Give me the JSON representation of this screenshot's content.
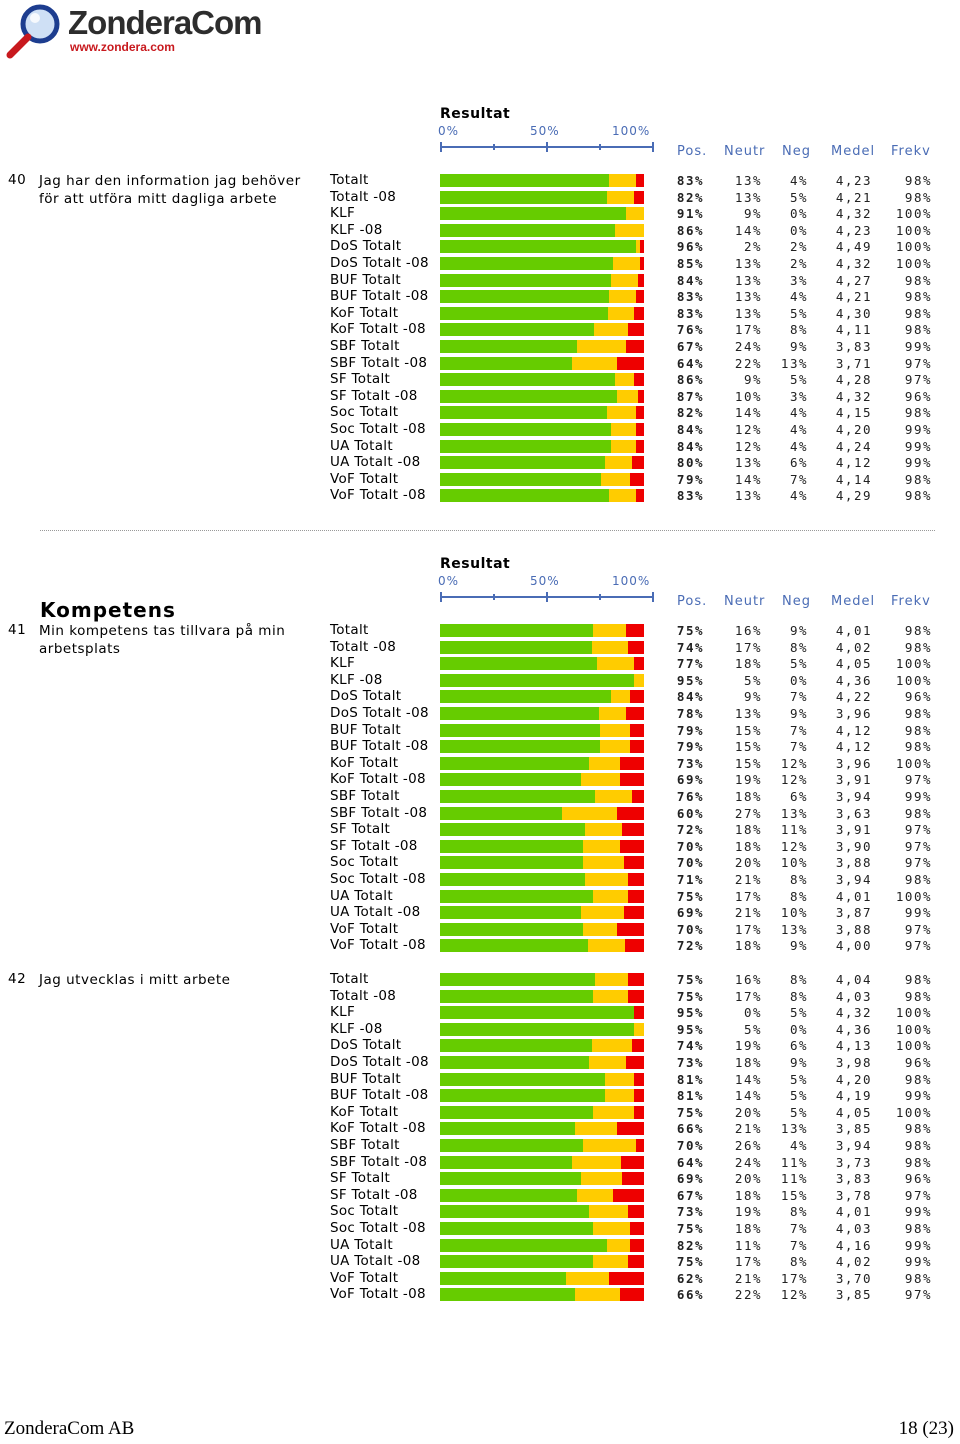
{
  "logo": {
    "brand": "ZonderaCom",
    "url": "www.zondera.com"
  },
  "colors": {
    "positive": "#66cc00",
    "neutral": "#ffcc00",
    "negative": "#ee0000",
    "header_blue": "#4a6cb5"
  },
  "header": {
    "result_label": "Resultat",
    "scale": [
      "0%",
      "50%",
      "100%"
    ],
    "columns": {
      "pos": "Pos.",
      "neutr": "Neutr",
      "neg": "Neg",
      "medel": "Medel",
      "frekv": "Frekv"
    }
  },
  "sections": [
    {
      "title": "",
      "questions": [
        {
          "num": "40",
          "text": "Jag har den information jag behöver för att utföra mitt dagliga arbete",
          "rows": [
            {
              "label": "Totalt",
              "pos": "83%",
              "neutr": "13%",
              "neg": "4%",
              "medel": "4,23",
              "frekv": "98%"
            },
            {
              "label": "Totalt -08",
              "pos": "82%",
              "neutr": "13%",
              "neg": "5%",
              "medel": "4,21",
              "frekv": "98%"
            },
            {
              "label": "KLF",
              "pos": "91%",
              "neutr": "9%",
              "neg": "0%",
              "medel": "4,32",
              "frekv": "100%"
            },
            {
              "label": "KLF -08",
              "pos": "86%",
              "neutr": "14%",
              "neg": "0%",
              "medel": "4,23",
              "frekv": "100%"
            },
            {
              "label": "DoS Totalt",
              "pos": "96%",
              "neutr": "2%",
              "neg": "2%",
              "medel": "4,49",
              "frekv": "100%"
            },
            {
              "label": "DoS Totalt -08",
              "pos": "85%",
              "neutr": "13%",
              "neg": "2%",
              "medel": "4,32",
              "frekv": "100%"
            },
            {
              "label": "BUF Totalt",
              "pos": "84%",
              "neutr": "13%",
              "neg": "3%",
              "medel": "4,27",
              "frekv": "98%"
            },
            {
              "label": "BUF Totalt -08",
              "pos": "83%",
              "neutr": "13%",
              "neg": "4%",
              "medel": "4,21",
              "frekv": "98%"
            },
            {
              "label": "KoF Totalt",
              "pos": "83%",
              "neutr": "13%",
              "neg": "5%",
              "medel": "4,30",
              "frekv": "98%"
            },
            {
              "label": "KoF Totalt -08",
              "pos": "76%",
              "neutr": "17%",
              "neg": "8%",
              "medel": "4,11",
              "frekv": "98%"
            },
            {
              "label": "SBF Totalt",
              "pos": "67%",
              "neutr": "24%",
              "neg": "9%",
              "medel": "3,83",
              "frekv": "99%"
            },
            {
              "label": "SBF Totalt -08",
              "pos": "64%",
              "neutr": "22%",
              "neg": "13%",
              "medel": "3,71",
              "frekv": "97%"
            },
            {
              "label": "SF Totalt",
              "pos": "86%",
              "neutr": "9%",
              "neg": "5%",
              "medel": "4,28",
              "frekv": "97%"
            },
            {
              "label": "SF Totalt -08",
              "pos": "87%",
              "neutr": "10%",
              "neg": "3%",
              "medel": "4,32",
              "frekv": "96%"
            },
            {
              "label": "Soc Totalt",
              "pos": "82%",
              "neutr": "14%",
              "neg": "4%",
              "medel": "4,15",
              "frekv": "98%"
            },
            {
              "label": "Soc Totalt -08",
              "pos": "84%",
              "neutr": "12%",
              "neg": "4%",
              "medel": "4,20",
              "frekv": "99%"
            },
            {
              "label": "UA Totalt",
              "pos": "84%",
              "neutr": "12%",
              "neg": "4%",
              "medel": "4,24",
              "frekv": "99%"
            },
            {
              "label": "UA Totalt -08",
              "pos": "80%",
              "neutr": "13%",
              "neg": "6%",
              "medel": "4,12",
              "frekv": "99%"
            },
            {
              "label": "VoF Totalt",
              "pos": "79%",
              "neutr": "14%",
              "neg": "7%",
              "medel": "4,14",
              "frekv": "98%"
            },
            {
              "label": "VoF Totalt -08",
              "pos": "83%",
              "neutr": "13%",
              "neg": "4%",
              "medel": "4,29",
              "frekv": "98%"
            }
          ]
        }
      ]
    },
    {
      "title": "Kompetens",
      "questions": [
        {
          "num": "41",
          "text": "Min kompetens tas tillvara på min arbetsplats",
          "rows": [
            {
              "label": "Totalt",
              "pos": "75%",
              "neutr": "16%",
              "neg": "9%",
              "medel": "4,01",
              "frekv": "98%"
            },
            {
              "label": "Totalt -08",
              "pos": "74%",
              "neutr": "17%",
              "neg": "8%",
              "medel": "4,02",
              "frekv": "98%"
            },
            {
              "label": "KLF",
              "pos": "77%",
              "neutr": "18%",
              "neg": "5%",
              "medel": "4,05",
              "frekv": "100%"
            },
            {
              "label": "KLF -08",
              "pos": "95%",
              "neutr": "5%",
              "neg": "0%",
              "medel": "4,36",
              "frekv": "100%"
            },
            {
              "label": "DoS Totalt",
              "pos": "84%",
              "neutr": "9%",
              "neg": "7%",
              "medel": "4,22",
              "frekv": "96%"
            },
            {
              "label": "DoS Totalt -08",
              "pos": "78%",
              "neutr": "13%",
              "neg": "9%",
              "medel": "3,96",
              "frekv": "98%"
            },
            {
              "label": "BUF Totalt",
              "pos": "79%",
              "neutr": "15%",
              "neg": "7%",
              "medel": "4,12",
              "frekv": "98%"
            },
            {
              "label": "BUF Totalt -08",
              "pos": "79%",
              "neutr": "15%",
              "neg": "7%",
              "medel": "4,12",
              "frekv": "98%"
            },
            {
              "label": "KoF Totalt",
              "pos": "73%",
              "neutr": "15%",
              "neg": "12%",
              "medel": "3,96",
              "frekv": "100%"
            },
            {
              "label": "KoF Totalt -08",
              "pos": "69%",
              "neutr": "19%",
              "neg": "12%",
              "medel": "3,91",
              "frekv": "97%"
            },
            {
              "label": "SBF Totalt",
              "pos": "76%",
              "neutr": "18%",
              "neg": "6%",
              "medel": "3,94",
              "frekv": "99%"
            },
            {
              "label": "SBF Totalt -08",
              "pos": "60%",
              "neutr": "27%",
              "neg": "13%",
              "medel": "3,63",
              "frekv": "98%"
            },
            {
              "label": "SF Totalt",
              "pos": "72%",
              "neutr": "18%",
              "neg": "11%",
              "medel": "3,91",
              "frekv": "97%"
            },
            {
              "label": "SF Totalt -08",
              "pos": "70%",
              "neutr": "18%",
              "neg": "12%",
              "medel": "3,90",
              "frekv": "97%"
            },
            {
              "label": "Soc Totalt",
              "pos": "70%",
              "neutr": "20%",
              "neg": "10%",
              "medel": "3,88",
              "frekv": "97%"
            },
            {
              "label": "Soc Totalt -08",
              "pos": "71%",
              "neutr": "21%",
              "neg": "8%",
              "medel": "3,94",
              "frekv": "98%"
            },
            {
              "label": "UA Totalt",
              "pos": "75%",
              "neutr": "17%",
              "neg": "8%",
              "medel": "4,01",
              "frekv": "100%"
            },
            {
              "label": "UA Totalt -08",
              "pos": "69%",
              "neutr": "21%",
              "neg": "10%",
              "medel": "3,87",
              "frekv": "99%"
            },
            {
              "label": "VoF Totalt",
              "pos": "70%",
              "neutr": "17%",
              "neg": "13%",
              "medel": "3,88",
              "frekv": "97%"
            },
            {
              "label": "VoF Totalt -08",
              "pos": "72%",
              "neutr": "18%",
              "neg": "9%",
              "medel": "4,00",
              "frekv": "97%"
            }
          ]
        },
        {
          "num": "42",
          "text": "Jag utvecklas i mitt arbete",
          "rows": [
            {
              "label": "Totalt",
              "pos": "75%",
              "neutr": "16%",
              "neg": "8%",
              "medel": "4,04",
              "frekv": "98%"
            },
            {
              "label": "Totalt -08",
              "pos": "75%",
              "neutr": "17%",
              "neg": "8%",
              "medel": "4,03",
              "frekv": "98%"
            },
            {
              "label": "KLF",
              "pos": "95%",
              "neutr": "0%",
              "neg": "5%",
              "medel": "4,32",
              "frekv": "100%"
            },
            {
              "label": "KLF -08",
              "pos": "95%",
              "neutr": "5%",
              "neg": "0%",
              "medel": "4,36",
              "frekv": "100%"
            },
            {
              "label": "DoS Totalt",
              "pos": "74%",
              "neutr": "19%",
              "neg": "6%",
              "medel": "4,13",
              "frekv": "100%"
            },
            {
              "label": "DoS Totalt -08",
              "pos": "73%",
              "neutr": "18%",
              "neg": "9%",
              "medel": "3,98",
              "frekv": "96%"
            },
            {
              "label": "BUF Totalt",
              "pos": "81%",
              "neutr": "14%",
              "neg": "5%",
              "medel": "4,20",
              "frekv": "98%"
            },
            {
              "label": "BUF Totalt -08",
              "pos": "81%",
              "neutr": "14%",
              "neg": "5%",
              "medel": "4,19",
              "frekv": "99%"
            },
            {
              "label": "KoF Totalt",
              "pos": "75%",
              "neutr": "20%",
              "neg": "5%",
              "medel": "4,05",
              "frekv": "100%"
            },
            {
              "label": "KoF Totalt -08",
              "pos": "66%",
              "neutr": "21%",
              "neg": "13%",
              "medel": "3,85",
              "frekv": "98%"
            },
            {
              "label": "SBF Totalt",
              "pos": "70%",
              "neutr": "26%",
              "neg": "4%",
              "medel": "3,94",
              "frekv": "98%"
            },
            {
              "label": "SBF Totalt -08",
              "pos": "64%",
              "neutr": "24%",
              "neg": "11%",
              "medel": "3,73",
              "frekv": "98%"
            },
            {
              "label": "SF Totalt",
              "pos": "69%",
              "neutr": "20%",
              "neg": "11%",
              "medel": "3,83",
              "frekv": "96%"
            },
            {
              "label": "SF Totalt -08",
              "pos": "67%",
              "neutr": "18%",
              "neg": "15%",
              "medel": "3,78",
              "frekv": "97%"
            },
            {
              "label": "Soc Totalt",
              "pos": "73%",
              "neutr": "19%",
              "neg": "8%",
              "medel": "4,01",
              "frekv": "99%"
            },
            {
              "label": "Soc Totalt -08",
              "pos": "75%",
              "neutr": "18%",
              "neg": "7%",
              "medel": "4,03",
              "frekv": "98%"
            },
            {
              "label": "UA Totalt",
              "pos": "82%",
              "neutr": "11%",
              "neg": "7%",
              "medel": "4,16",
              "frekv": "99%"
            },
            {
              "label": "UA Totalt -08",
              "pos": "75%",
              "neutr": "17%",
              "neg": "8%",
              "medel": "4,02",
              "frekv": "99%"
            },
            {
              "label": "VoF Totalt",
              "pos": "62%",
              "neutr": "21%",
              "neg": "17%",
              "medel": "3,70",
              "frekv": "98%"
            },
            {
              "label": "VoF Totalt -08",
              "pos": "66%",
              "neutr": "22%",
              "neg": "12%",
              "medel": "3,85",
              "frekv": "97%"
            }
          ]
        }
      ]
    }
  ],
  "footer": {
    "company": "ZonderaCom AB",
    "page": "18 (23)"
  }
}
